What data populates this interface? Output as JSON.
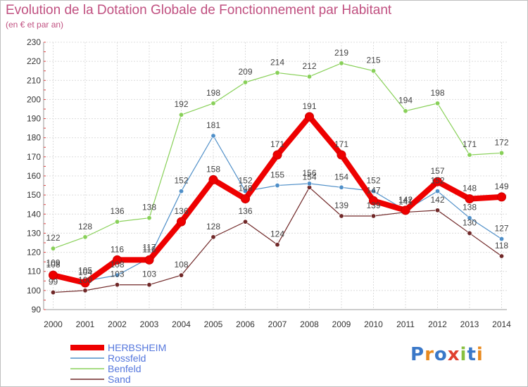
{
  "title": "Evolution de la Dotation Globale de Fonctionnement par Habitant",
  "subtitle": "(en € et par an)",
  "logo": "Proxiti",
  "chart_data": {
    "type": "line",
    "x": [
      "2000",
      "2001",
      "2002",
      "2003",
      "2004",
      "2005",
      "2006",
      "2007",
      "2008",
      "2009",
      "2010",
      "2011",
      "2012",
      "2013",
      "2014"
    ],
    "ylim": [
      90,
      230
    ],
    "yticks": [
      90,
      100,
      110,
      120,
      130,
      140,
      150,
      160,
      170,
      180,
      190,
      200,
      210,
      220,
      230
    ],
    "grid": true,
    "legend_position": "bottom-left",
    "series": [
      {
        "name": "HERBSHEIM",
        "color": "#ee0000",
        "values": [
          108,
          104,
          116,
          116,
          136,
          158,
          148,
          171,
          191,
          171,
          147,
          142,
          157,
          148,
          149
        ]
      },
      {
        "name": "Rossfeld",
        "color": "#4f8fc8",
        "values": [
          109,
          105,
          108,
          117,
          152,
          181,
          152,
          155,
          156,
          154,
          152,
          142,
          152,
          138,
          127
        ]
      },
      {
        "name": "Benfeld",
        "color": "#88d058",
        "values": [
          122,
          128,
          136,
          138,
          192,
          198,
          209,
          214,
          212,
          219,
          215,
          194,
          198,
          171,
          172
        ]
      },
      {
        "name": "Sand",
        "color": "#702828",
        "values": [
          99,
          100,
          103,
          103,
          108,
          128,
          136,
          124,
          154,
          139,
          139,
          141,
          142,
          130,
          118
        ]
      }
    ]
  }
}
